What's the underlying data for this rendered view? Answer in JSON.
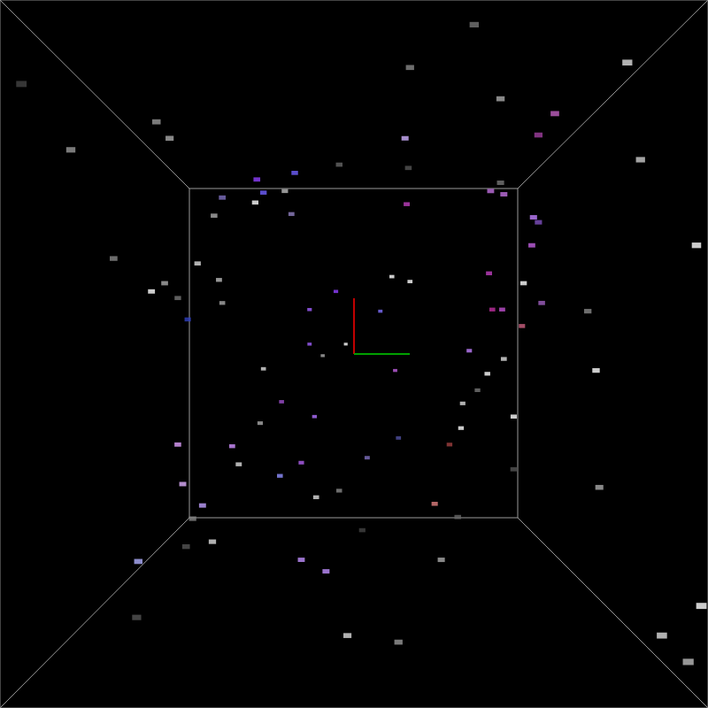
{
  "chart_data": {
    "type": "scatter",
    "marker": "rect",
    "grid": false,
    "tick_labels": false,
    "xlim": [
      -2.15,
      2.15
    ],
    "ylim": [
      -2.15,
      2.15
    ],
    "x": [
      0.73,
      1.66,
      -2.02,
      0.34,
      0.89,
      1.22,
      1.12,
      -1.2,
      -1.12,
      -1.72,
      0.31,
      1.74,
      -0.36,
      -0.09,
      0.33,
      -0.59,
      -0.42,
      -0.55,
      -0.8,
      0.89,
      0.91,
      0.83,
      -0.6,
      0.32,
      -0.38,
      -0.85,
      1.09,
      1.12,
      1.08,
      2.08,
      -1.46,
      -0.95,
      -1.15,
      -0.82,
      0.23,
      0.34,
      0.82,
      1.03,
      -1.23,
      -1.07,
      -0.11,
      -0.8,
      1.14,
      -0.27,
      0.16,
      0.84,
      0.9,
      1.42,
      -1.01,
      1.02,
      -0.27,
      -0.05,
      -0.19,
      0.7,
      0.91,
      -0.55,
      0.25,
      0.81,
      1.47,
      0.75,
      0.66,
      -0.44,
      -0.24,
      0.97,
      -0.57,
      0.65,
      0.27,
      0.58,
      -1.07,
      -0.74,
      -0.32,
      0.08,
      -0.7,
      0.97,
      -0.45,
      -1.04,
      -0.09,
      1.49,
      -0.23,
      -0.92,
      0.49,
      0.63,
      -0.98,
      0.05,
      -0.86,
      0.53,
      -1.02,
      -1.31,
      -0.32,
      -0.17,
      2.11,
      -1.32,
      -0.04,
      0.27,
      1.87,
      2.03
    ],
    "values": [
      2.0,
      1.77,
      1.64,
      1.74,
      1.55,
      1.46,
      1.33,
      1.41,
      1.31,
      1.24,
      1.31,
      1.18,
      1.1,
      1.15,
      1.13,
      1.06,
      0.99,
      0.98,
      0.95,
      1.04,
      0.97,
      0.99,
      0.92,
      0.91,
      0.85,
      0.84,
      0.83,
      0.8,
      0.66,
      0.66,
      0.58,
      0.55,
      0.43,
      0.45,
      0.47,
      0.44,
      0.49,
      0.43,
      0.38,
      0.34,
      0.38,
      0.31,
      0.31,
      0.27,
      0.26,
      0.27,
      0.27,
      0.26,
      0.21,
      0.17,
      0.06,
      0.06,
      -0.01,
      0.02,
      -0.03,
      -0.09,
      -0.1,
      -0.12,
      -0.1,
      -0.22,
      -0.3,
      -0.29,
      -0.38,
      -0.38,
      -0.42,
      -0.45,
      -0.51,
      -0.55,
      -0.55,
      -0.56,
      -0.66,
      -0.63,
      -0.67,
      -0.7,
      -0.74,
      -0.79,
      -0.83,
      -0.81,
      -0.87,
      -0.92,
      -0.91,
      -0.99,
      -1.0,
      -1.07,
      -1.14,
      -1.25,
      -1.17,
      -1.26,
      -1.25,
      -1.32,
      -1.53,
      -1.6,
      -1.71,
      -1.75,
      -1.71,
      -1.87
    ],
    "colors": [
      "#777777",
      "#dddddd",
      "#444444",
      "#888888",
      "#aaaaaa",
      "#c060c0",
      "#a040a0",
      "#999999",
      "#aaaaaa",
      "#999999",
      "#d0b0ff",
      "#cccccc",
      "#7060ff",
      "#666666",
      "#555555",
      "#9040ff",
      "#bbbbbb",
      "#7060ff",
      "#8070c0",
      "#777777",
      "#c070e0",
      "#c070e0",
      "#ffffff",
      "#c040c0",
      "#9080c0",
      "#aaaaaa",
      "#c080ff",
      "#8050c0",
      "#c060e0",
      "#ffffff",
      "#888888",
      "#dddddd",
      "#aaaaaa",
      "#bbbbbb",
      "#ffffff",
      "#ffffff",
      "#c040c0",
      "#ffffff",
      "#ffffff",
      "#777777",
      "#9040ff",
      "#aaaaaa",
      "#a060c0",
      "#a060ff",
      "#8070ff",
      "#c030a0",
      "#c050d0",
      "#888888",
      "#3040c0",
      "#cc6080",
      "#a060ff",
      "#ffffff",
      "#aaaaaa",
      "#c080ff",
      "#dddddd",
      "#dddddd",
      "#c060e0",
      "#ffffff",
      "#ffffff",
      "#777777",
      "#dddddd",
      "#a050d0",
      "#b070ff",
      "#ffffff",
      "#aaaaaa",
      "#ffffff",
      "#5050a0",
      "#a04040",
      "#e0a0ff",
      "#d090ff",
      "#b060f0",
      "#8070c0",
      "#dddddd",
      "#555555",
      "#9090ff",
      "#e0b0ff",
      "#888888",
      "#aaaaaa",
      "#dddddd",
      "#c0a0ff",
      "#e08080",
      "#666666",
      "#888888",
      "#444444",
      "#dddddd",
      "#aaaaaa",
      "#555555",
      "#b0b0ff",
      "#c090ff",
      "#c090ff",
      "#ffffff",
      "#555555",
      "#dddddd",
      "#999999",
      "#dddddd",
      "#bbbbbb"
    ]
  }
}
